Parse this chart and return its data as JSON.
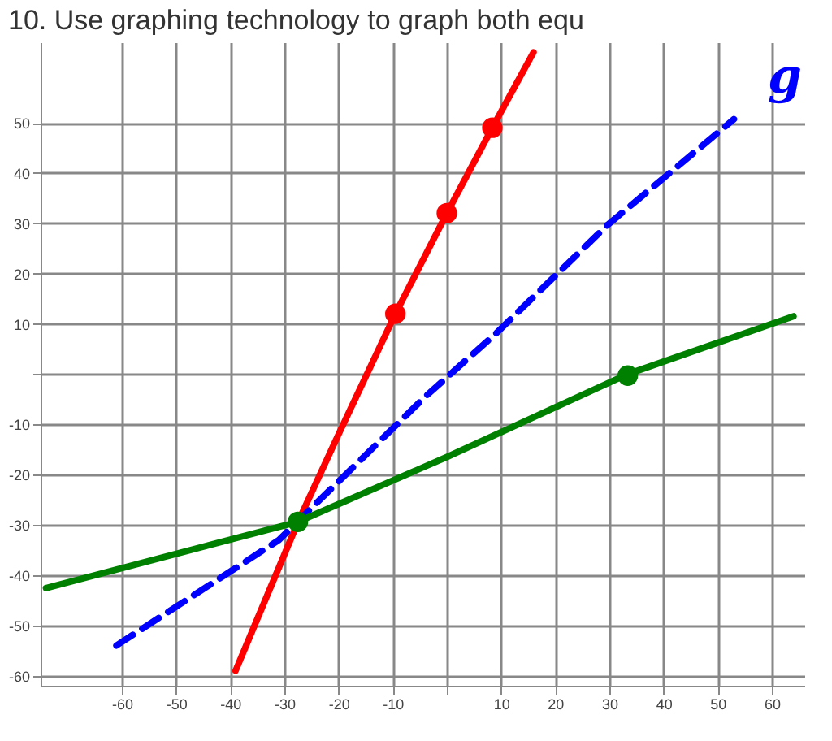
{
  "chart_data": {
    "type": "line",
    "title": "10.    Use graphing technology to graph both equ",
    "xlim": [
      -75,
      66
    ],
    "ylim": [
      -62,
      66
    ],
    "xticks": [
      -60,
      -50,
      -40,
      -30,
      -20,
      -10,
      {
        "value": 0,
        "label": null
      },
      10,
      20,
      30,
      40,
      50,
      60
    ],
    "yticks": [
      -60,
      -50,
      -40,
      -30,
      -20,
      -10,
      {
        "value": 0,
        "label": null
      },
      10,
      20,
      30,
      40,
      50
    ],
    "grid": true,
    "series": [
      {
        "color": "#ff0000",
        "line_style": "solid",
        "x": [
          -39,
          -27.5,
          -20,
          -9.5,
          0,
          8.4,
          16
        ],
        "values": [
          -59,
          -29.5,
          -12,
          12,
          32,
          49,
          64
        ]
      },
      {
        "color": "#0000ff",
        "line_style": "dashed",
        "x": [
          -61,
          -31,
          -4,
          9,
          29.7,
          53
        ],
        "values": [
          -54,
          -33,
          -4.5,
          8,
          29.7,
          50.7
        ]
      },
      {
        "color": "#008000",
        "line_style": "solid",
        "x": [
          -74,
          -27.5,
          0,
          33.4,
          64
        ],
        "values": [
          -42.6,
          -29.4,
          -16.5,
          0,
          11.5
        ]
      },
      {
        "type": "scatter",
        "color": "#ff0000",
        "marker": "circle",
        "x": [
          -9.5,
          0,
          8.4
        ],
        "values": [
          12,
          32,
          49
        ]
      },
      {
        "type": "scatter",
        "color": "#008000",
        "marker": "circle",
        "x": [
          -27.5,
          33.4
        ],
        "values": [
          -29.4,
          -0.3
        ]
      }
    ],
    "annotations": [
      "g"
    ]
  }
}
